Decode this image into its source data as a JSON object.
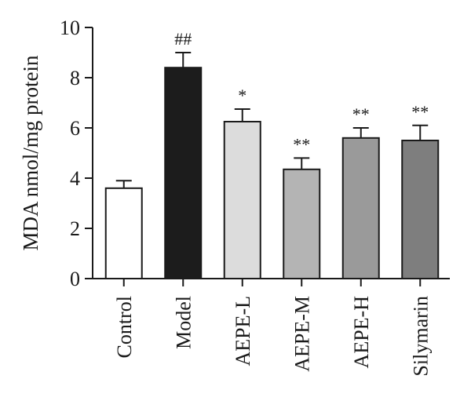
{
  "chart_data": {
    "type": "bar",
    "title": "",
    "xlabel": "",
    "ylabel": "MDA nmol/mg protein",
    "ylim": [
      0,
      10
    ],
    "yticks": [
      "0",
      "2",
      "4",
      "6",
      "8",
      "10"
    ],
    "categories": [
      "Control",
      "Model",
      "AEPE-L",
      "AEPE-M",
      "AEPE-H",
      "Silymarin"
    ],
    "values": [
      3.6,
      8.4,
      6.25,
      4.35,
      5.6,
      5.5
    ],
    "errors": [
      0.3,
      0.6,
      0.5,
      0.45,
      0.4,
      0.6
    ],
    "annotations": [
      "",
      "##",
      "*",
      "**",
      "**",
      "**"
    ],
    "bar_colors": [
      "#ffffff",
      "#1c1c1c",
      "#dcdcdc",
      "#b4b4b4",
      "#9a9a9a",
      "#7e7e7e"
    ],
    "grid": false,
    "legend": "none"
  }
}
